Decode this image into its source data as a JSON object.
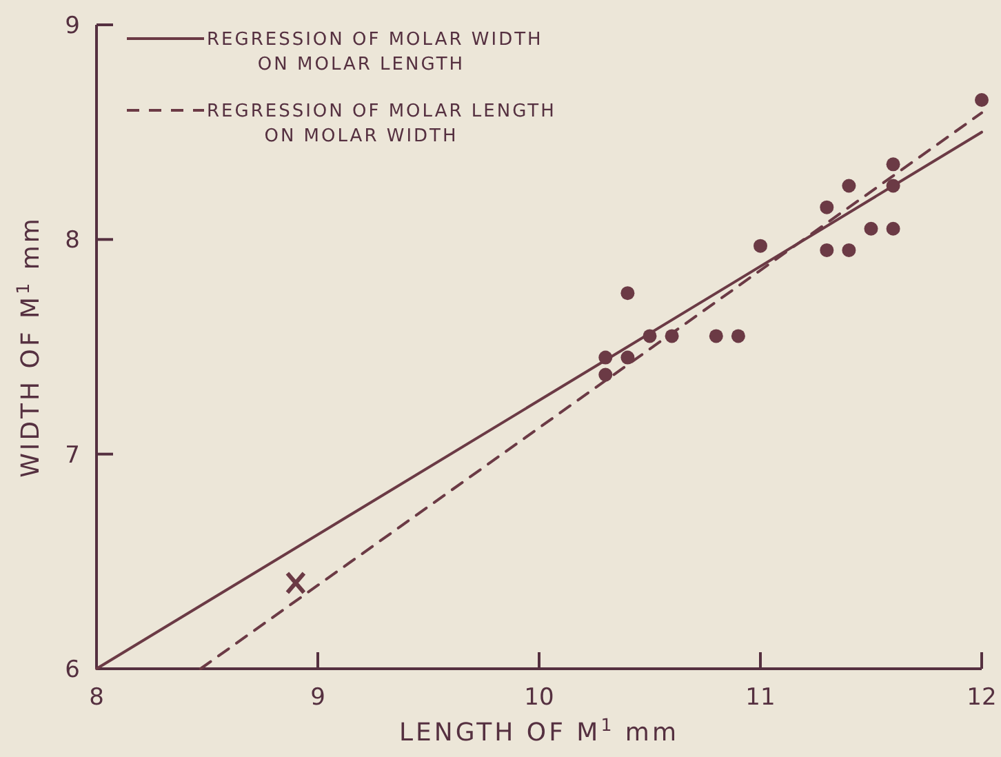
{
  "chart_data": {
    "type": "scatter",
    "xlabel": "LENGTH OF M$^{1}$ mm",
    "ylabel": "WIDTH OF M$^{1}$ mm",
    "xlim": [
      8,
      12
    ],
    "ylim": [
      6,
      9
    ],
    "xticks": [
      8,
      9,
      10,
      11,
      12
    ],
    "yticks": [
      6,
      7,
      8,
      9
    ],
    "grid": false,
    "legend": "top left",
    "series": [
      {
        "name": "REGRESSION OF MOLAR WIDTH ON MOLAR LENGTH",
        "type": "line",
        "line_style": "solid",
        "color": "#6b3a45",
        "x": [
          8,
          12
        ],
        "values": [
          6,
          8.5
        ]
      },
      {
        "name": "REGRESSION OF MOLAR LENGTH ON MOLAR WIDTH",
        "type": "line",
        "line_style": "dashed",
        "color": "#6b3a45",
        "x": [
          8.47,
          12
        ],
        "values": [
          6,
          8.59
        ]
      },
      {
        "marker": "circle",
        "color": "#6b3a45",
        "x": [
          12.0,
          11.6,
          11.6,
          11.4,
          11.3,
          11.5,
          11.6,
          11.3,
          11.4,
          11.0,
          10.4,
          10.3,
          10.4,
          10.5,
          10.6,
          10.8,
          10.9,
          10.3
        ],
        "values": [
          8.65,
          8.35,
          8.25,
          8.25,
          8.15,
          8.05,
          8.05,
          7.95,
          7.95,
          7.97,
          7.75,
          7.45,
          7.45,
          7.55,
          7.55,
          7.55,
          7.55,
          7.37
        ]
      },
      {
        "marker": "cross",
        "color": "#6b3a45",
        "x": [
          8.9
        ],
        "values": [
          6.4
        ]
      }
    ]
  }
}
